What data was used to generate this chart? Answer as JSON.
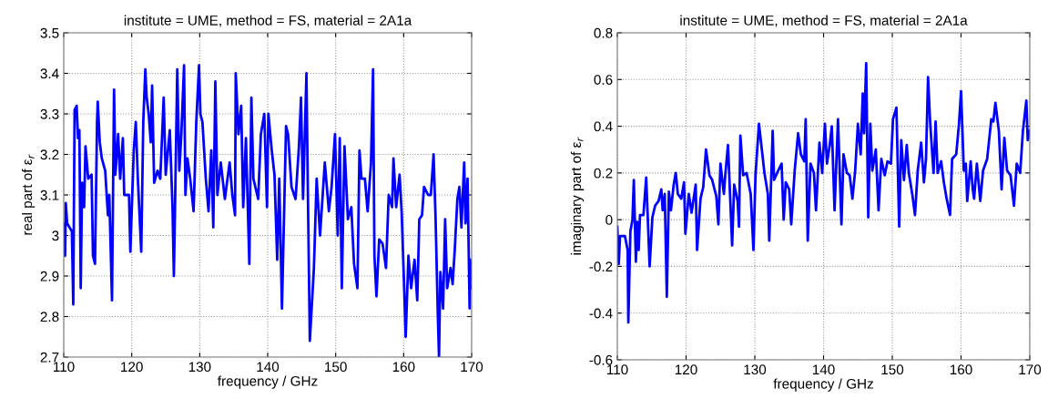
{
  "chart_data": [
    {
      "type": "line",
      "title": "institute = UME, method = FS, material = 2A1a",
      "xlabel": "frequency / GHz",
      "ylabel": "real part of ε$_{r}$",
      "xlim": [
        110,
        170
      ],
      "xticks": [
        110,
        120,
        130,
        140,
        150,
        160,
        170
      ],
      "ylim": [
        2.7,
        3.5
      ],
      "yticks": [
        2.7,
        2.8,
        2.9,
        3,
        3.1,
        3.2,
        3.3,
        3.4,
        3.5
      ],
      "grid": true,
      "line_style": "solid",
      "marker": "none",
      "series": [
        {
          "color": "#0000ff",
          "x": [
            110.0,
            110.2,
            110.3,
            110.5,
            111.2,
            111.4,
            111.6,
            111.9,
            112.1,
            112.3,
            112.5,
            112.7,
            113.0,
            113.2,
            113.6,
            114.1,
            114.3,
            114.6,
            114.9,
            115.0,
            115.3,
            115.6,
            116.1,
            116.5,
            116.7,
            117.1,
            117.4,
            117.6,
            118.0,
            118.3,
            118.7,
            118.9,
            119.6,
            119.8,
            120.3,
            120.6,
            120.9,
            121.4,
            121.7,
            122.0,
            122.2,
            122.5,
            122.8,
            123.0,
            123.3,
            123.8,
            124.2,
            124.7,
            125.0,
            125.6,
            126.0,
            126.2,
            126.4,
            126.7,
            127.0,
            127.3,
            127.7,
            127.9,
            128.2,
            128.6,
            129.1,
            129.5,
            129.9,
            130.1,
            130.4,
            130.9,
            131.3,
            131.7,
            132.0,
            132.3,
            132.6,
            133.1,
            133.7,
            134.4,
            134.8,
            135.2,
            135.3,
            135.7,
            136.1,
            136.4,
            136.8,
            137.3,
            137.6,
            137.9,
            138.6,
            139.0,
            139.5,
            139.9,
            140.1,
            140.6,
            141.0,
            141.4,
            141.7,
            142.1,
            142.7,
            143.0,
            143.5,
            144.1,
            144.6,
            144.9,
            145.2,
            145.7,
            145.9,
            146.2,
            146.8,
            147.2,
            147.7,
            148.4,
            149.0,
            149.4,
            149.9,
            150.3,
            150.6,
            150.9,
            151.3,
            151.8,
            152.3,
            152.7,
            153.2,
            153.5,
            153.8,
            154.3,
            154.7,
            155.2,
            155.5,
            155.7,
            156.0,
            156.4,
            156.9,
            157.4,
            157.8,
            158.3,
            158.5,
            158.9,
            159.4,
            159.7,
            160.0,
            160.3,
            160.7,
            161.1,
            161.6,
            162.0,
            162.3,
            162.7,
            163.0,
            163.6,
            164.0,
            164.4,
            164.7,
            165.0,
            165.2,
            165.4,
            165.8,
            166.1,
            166.4,
            166.9,
            167.2,
            167.5,
            167.9,
            168.2,
            168.5,
            168.9,
            169.1,
            169.4,
            169.7,
            169.8,
            170.0
          ],
          "values": [
            3.03,
            2.95,
            3.08,
            3.03,
            3.01,
            2.83,
            3.31,
            3.32,
            3.24,
            3.26,
            2.87,
            3.13,
            3.07,
            3.22,
            3.14,
            3.15,
            2.95,
            2.93,
            3.28,
            3.33,
            3.23,
            3.19,
            3.16,
            3.05,
            3.1,
            2.84,
            3.36,
            3.15,
            3.25,
            3.14,
            3.24,
            3.1,
            3.1,
            2.96,
            3.21,
            3.28,
            3.14,
            2.96,
            3.28,
            3.41,
            3.34,
            3.3,
            3.23,
            3.37,
            3.13,
            3.16,
            3.14,
            3.34,
            3.15,
            3.26,
            3.07,
            2.9,
            3.1,
            3.41,
            3.16,
            3.25,
            3.42,
            3.1,
            3.19,
            3.14,
            3.06,
            3.28,
            3.42,
            3.3,
            3.28,
            3.14,
            3.06,
            3.21,
            3.02,
            3.38,
            3.1,
            3.18,
            3.09,
            3.18,
            3.1,
            3.05,
            3.4,
            3.25,
            3.32,
            3.07,
            3.24,
            2.93,
            3.34,
            3.14,
            3.09,
            3.25,
            3.3,
            3.07,
            3.3,
            3.21,
            3.15,
            2.94,
            3.14,
            2.82,
            3.27,
            3.25,
            3.12,
            3.09,
            3.22,
            3.34,
            3.09,
            3.4,
            3.12,
            2.74,
            2.92,
            3.14,
            3.0,
            3.18,
            3.06,
            3.12,
            3.25,
            3.0,
            3.24,
            2.87,
            3.22,
            3.04,
            3.07,
            2.93,
            2.87,
            3.21,
            3.14,
            3.14,
            3.06,
            3.18,
            3.41,
            2.95,
            2.85,
            2.99,
            2.98,
            2.92,
            3.1,
            3.07,
            3.19,
            3.07,
            3.15,
            3.06,
            2.91,
            2.75,
            2.95,
            2.87,
            2.94,
            2.84,
            3.04,
            3.05,
            3.12,
            3.1,
            3.1,
            3.2,
            3.04,
            2.82,
            2.7,
            2.91,
            2.82,
            3.04,
            2.87,
            2.92,
            2.88,
            2.96,
            3.09,
            3.12,
            3.02,
            3.18,
            3.03,
            3.14,
            2.82,
            2.94,
            2.87
          ]
        }
      ]
    },
    {
      "type": "line",
      "title": "institute = UME, method = FS, material = 2A1a",
      "xlabel": "frequency / GHz",
      "ylabel": "imaginary part of ε$_{r}$",
      "xlim": [
        110,
        170
      ],
      "xticks": [
        110,
        120,
        130,
        140,
        150,
        160,
        170
      ],
      "ylim": [
        -0.6,
        0.8
      ],
      "yticks": [
        -0.6,
        -0.4,
        -0.2,
        0,
        0.2,
        0.4,
        0.6,
        0.8
      ],
      "grid": true,
      "line_style": "solid",
      "marker": "none",
      "series": [
        {
          "color": "#0000ff",
          "x": [
            110.0,
            110.2,
            110.4,
            111.1,
            111.5,
            111.6,
            111.9,
            112.2,
            112.4,
            112.7,
            112.9,
            113.1,
            113.3,
            113.8,
            114.2,
            114.4,
            114.7,
            115.1,
            115.5,
            116.0,
            116.4,
            116.6,
            116.9,
            117.2,
            117.5,
            117.8,
            118.2,
            118.5,
            118.8,
            119.3,
            119.7,
            119.9,
            120.4,
            120.8,
            121.4,
            121.6,
            122.1,
            122.5,
            122.9,
            123.4,
            123.8,
            124.4,
            124.7,
            125.0,
            125.5,
            125.7,
            126.1,
            126.7,
            127.0,
            127.5,
            127.7,
            127.9,
            128.3,
            128.8,
            129.4,
            129.8,
            130.1,
            130.6,
            131.1,
            131.4,
            131.9,
            132.1,
            132.6,
            132.8,
            133.4,
            133.9,
            134.2,
            134.5,
            135.0,
            135.3,
            135.8,
            136.3,
            136.7,
            137.2,
            137.4,
            137.7,
            138.1,
            138.6,
            138.9,
            139.4,
            139.8,
            140.2,
            140.5,
            140.9,
            141.2,
            141.6,
            142.1,
            142.6,
            142.9,
            143.4,
            143.8,
            144.2,
            144.6,
            145.0,
            145.4,
            145.7,
            145.9,
            146.2,
            146.5,
            146.8,
            147.1,
            147.6,
            148.0,
            148.4,
            148.9,
            149.3,
            149.8,
            150.1,
            150.6,
            151.0,
            151.3,
            151.7,
            152.1,
            152.4,
            152.9,
            153.3,
            153.7,
            154.2,
            154.6,
            154.9,
            155.2,
            155.5,
            156.0,
            156.3,
            156.6,
            157.1,
            157.5,
            157.9,
            158.4,
            158.7,
            159.3,
            159.7,
            160.0,
            160.4,
            160.7,
            160.9,
            161.4,
            161.7,
            161.9,
            162.3,
            162.8,
            163.2,
            163.8,
            164.4,
            164.7,
            165.0,
            165.5,
            165.9,
            166.3,
            166.7,
            167.2,
            167.7,
            168.1,
            168.6,
            169.0,
            169.5,
            169.7,
            170.0
          ],
          "values": [
            -0.03,
            -0.19,
            -0.07,
            -0.07,
            -0.13,
            -0.44,
            -0.05,
            0.0,
            0.17,
            -0.18,
            -0.01,
            -0.13,
            0.02,
            0.02,
            0.18,
            0.03,
            -0.2,
            0.01,
            0.06,
            0.08,
            0.13,
            0.04,
            0.11,
            -0.33,
            0.12,
            0.04,
            0.15,
            0.2,
            0.11,
            0.09,
            0.16,
            -0.06,
            0.11,
            0.03,
            0.15,
            -0.13,
            0.09,
            0.14,
            0.3,
            0.19,
            0.17,
            0.1,
            -0.02,
            0.24,
            0.11,
            0.19,
            0.32,
            -0.11,
            0.15,
            0.08,
            -0.03,
            0.36,
            0.19,
            0.2,
            0.11,
            -0.13,
            0.19,
            0.41,
            0.28,
            0.2,
            0.11,
            -0.09,
            0.38,
            0.17,
            0.21,
            0.24,
            0.0,
            0.16,
            0.13,
            -0.02,
            0.21,
            0.37,
            0.28,
            0.25,
            0.43,
            -0.09,
            0.24,
            0.2,
            0.04,
            0.33,
            0.2,
            0.41,
            0.24,
            0.32,
            0.4,
            0.04,
            0.43,
            -0.02,
            0.28,
            0.2,
            0.19,
            0.09,
            0.21,
            0.41,
            0.28,
            0.54,
            0.37,
            0.67,
            0.01,
            0.41,
            0.21,
            0.3,
            0.04,
            0.26,
            0.19,
            0.25,
            0.24,
            0.43,
            0.48,
            -0.03,
            0.34,
            0.17,
            0.32,
            0.2,
            0.11,
            0.02,
            0.21,
            0.33,
            0.16,
            0.26,
            0.61,
            0.42,
            0.2,
            0.42,
            0.2,
            0.25,
            0.16,
            0.09,
            0.02,
            0.26,
            0.28,
            0.41,
            0.55,
            0.21,
            0.24,
            0.08,
            0.25,
            0.13,
            0.09,
            0.24,
            0.08,
            0.21,
            0.26,
            0.43,
            0.42,
            0.5,
            0.38,
            0.13,
            0.35,
            0.21,
            0.19,
            0.06,
            0.24,
            0.2,
            0.38,
            0.51,
            0.34,
            0.38
          ]
        }
      ]
    }
  ]
}
